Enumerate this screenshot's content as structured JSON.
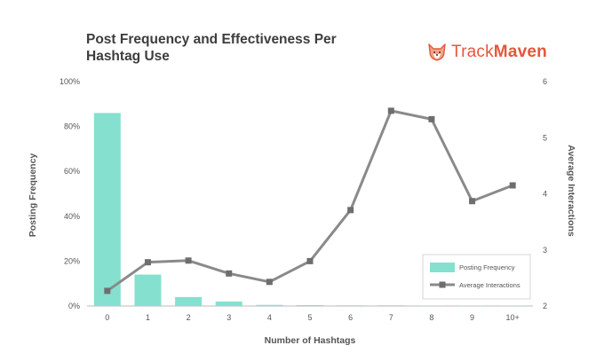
{
  "title_line1": "Post Frequency and Effectiveness Per",
  "title_line2": "Hashtag Use",
  "brand": {
    "part1": "Track",
    "part2": "Maven",
    "logo_icon": "corgi-dog-icon",
    "color": "#e4573d"
  },
  "chart_data": {
    "type": "bar",
    "categories": [
      "0",
      "1",
      "2",
      "3",
      "4",
      "5",
      "6",
      "7",
      "8",
      "9",
      "10+"
    ],
    "xlabel": "Number of Hashtags",
    "ylabel": "Posting Frequency",
    "y2label": "Average Interactions",
    "ylim": [
      0,
      100
    ],
    "yticks": [
      "0%",
      "20%",
      "40%",
      "60%",
      "80%",
      "100%"
    ],
    "y2lim": [
      2,
      6
    ],
    "y2ticks": [
      "2",
      "3",
      "4",
      "5",
      "6"
    ],
    "grid": false,
    "legend_position": "bottom-right",
    "series": [
      {
        "name": "Posting Frequency",
        "type": "bar",
        "axis": "left",
        "color": "#85e0cf",
        "values": [
          86,
          14,
          4,
          2,
          0.5,
          0.4,
          0.3,
          0.3,
          0.2,
          0.2,
          0.2
        ]
      },
      {
        "name": "Average Interactions",
        "type": "line",
        "axis": "right",
        "color": "#8a8a8a",
        "values": [
          2.27,
          2.78,
          2.81,
          2.58,
          2.43,
          2.8,
          3.71,
          5.48,
          5.33,
          3.87,
          4.15
        ]
      }
    ]
  }
}
